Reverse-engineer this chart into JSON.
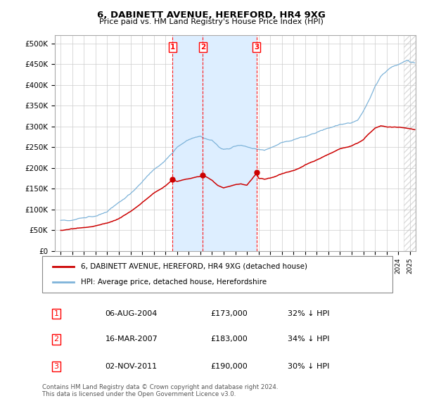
{
  "title": "6, DABINETT AVENUE, HEREFORD, HR4 9XG",
  "subtitle": "Price paid vs. HM Land Registry's House Price Index (HPI)",
  "ylabel_ticks": [
    "£0",
    "£50K",
    "£100K",
    "£150K",
    "£200K",
    "£250K",
    "£300K",
    "£350K",
    "£400K",
    "£450K",
    "£500K"
  ],
  "ytick_values": [
    0,
    50000,
    100000,
    150000,
    200000,
    250000,
    300000,
    350000,
    400000,
    450000,
    500000
  ],
  "ylim": [
    0,
    520000
  ],
  "xlim_start": 1994.5,
  "xlim_end": 2025.5,
  "hpi_color": "#7db3d9",
  "price_color": "#cc0000",
  "shade_color": "#ddeeff",
  "grid_color": "#cccccc",
  "background_color": "#ffffff",
  "sale_dates": [
    2004.595,
    2007.206,
    2011.839
  ],
  "sale_prices": [
    173000,
    183000,
    190000
  ],
  "sale_labels": [
    "1",
    "2",
    "3"
  ],
  "legend_label_price": "6, DABINETT AVENUE, HEREFORD, HR4 9XG (detached house)",
  "legend_label_hpi": "HPI: Average price, detached house, Herefordshire",
  "table_rows": [
    [
      "1",
      "06-AUG-2004",
      "£173,000",
      "32% ↓ HPI"
    ],
    [
      "2",
      "16-MAR-2007",
      "£183,000",
      "34% ↓ HPI"
    ],
    [
      "3",
      "02-NOV-2011",
      "£190,000",
      "30% ↓ HPI"
    ]
  ],
  "footnote": "Contains HM Land Registry data © Crown copyright and database right 2024.\nThis data is licensed under the Open Government Licence v3.0."
}
